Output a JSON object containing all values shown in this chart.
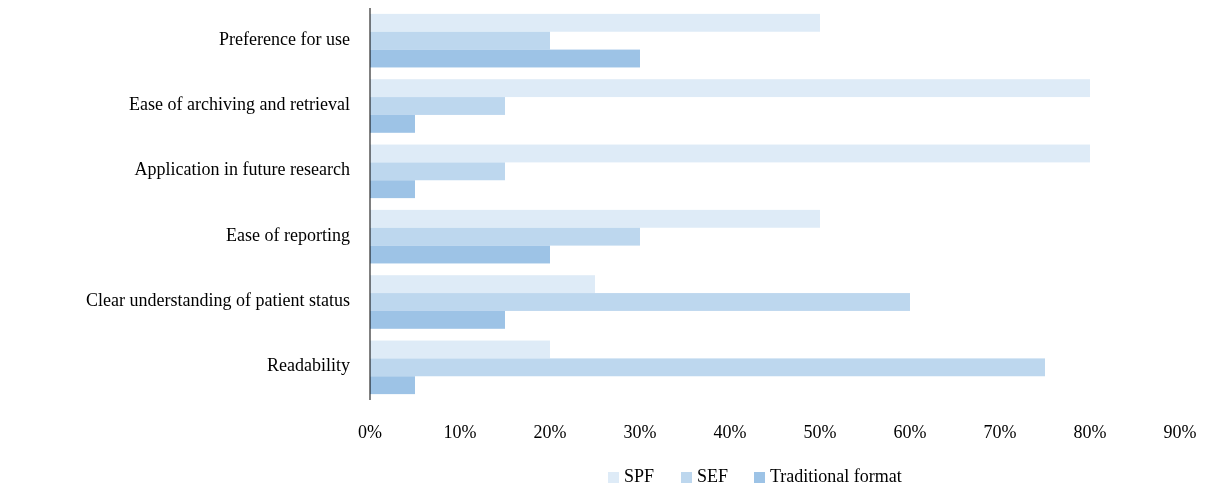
{
  "chart_data": {
    "type": "bar",
    "orientation": "horizontal",
    "categories": [
      "Preference for use",
      "Ease of archiving and retrieval",
      "Application in future research",
      "Ease of reporting",
      "Clear understanding of patient status",
      "Readability"
    ],
    "series": [
      {
        "name": "SPF",
        "color": "#deebf7",
        "values": [
          50,
          80,
          80,
          50,
          25,
          20
        ]
      },
      {
        "name": "SEF",
        "color": "#bdd7ee",
        "values": [
          20,
          15,
          15,
          30,
          60,
          75
        ]
      },
      {
        "name": "Traditional format",
        "color": "#9dc3e6",
        "values": [
          30,
          5,
          5,
          20,
          15,
          5
        ]
      }
    ],
    "xlim": [
      0,
      90
    ],
    "xticks": [
      {
        "value": 0,
        "label": "0%"
      },
      {
        "value": 10,
        "label": "10%"
      },
      {
        "value": 20,
        "label": "20%"
      },
      {
        "value": 30,
        "label": "30%"
      },
      {
        "value": 40,
        "label": "40%"
      },
      {
        "value": 50,
        "label": "50%"
      },
      {
        "value": 60,
        "label": "60%"
      },
      {
        "value": 70,
        "label": "70%"
      },
      {
        "value": 80,
        "label": "80%"
      },
      {
        "value": 90,
        "label": "90%"
      }
    ],
    "grid": false,
    "legend": "bottom"
  }
}
